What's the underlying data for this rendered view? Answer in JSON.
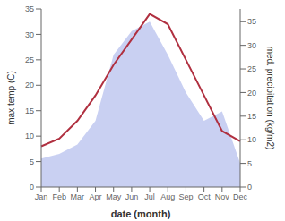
{
  "chart_data": {
    "type": "line",
    "xlabel": "date (month)",
    "ylabel": "max temp (C)",
    "y2label": "med. precipitation (kg/m2)",
    "categories": [
      "Jan",
      "Feb",
      "Mar",
      "Apr",
      "May",
      "Jun",
      "Jul",
      "Aug",
      "Sep",
      "Oct",
      "Nov",
      "Dec"
    ],
    "series": [
      {
        "type": "area",
        "axis": "y2",
        "color": "#c0c8f0",
        "values": [
          6,
          7,
          9,
          14,
          28,
          33,
          35,
          28,
          20,
          14,
          16,
          5
        ]
      },
      {
        "type": "line",
        "axis": "y",
        "color": "#b03040",
        "values": [
          8,
          9.5,
          13,
          18,
          24,
          29,
          34,
          32,
          25,
          18,
          11,
          9
        ]
      }
    ],
    "ylim": [
      0,
      35
    ],
    "yticks": [
      0,
      5,
      10,
      15,
      20,
      25,
      30,
      35
    ],
    "y2lim": [
      0,
      37.7
    ],
    "y2ticks": [
      0,
      5,
      10,
      15,
      20,
      25,
      30,
      35
    ],
    "grid": false
  }
}
